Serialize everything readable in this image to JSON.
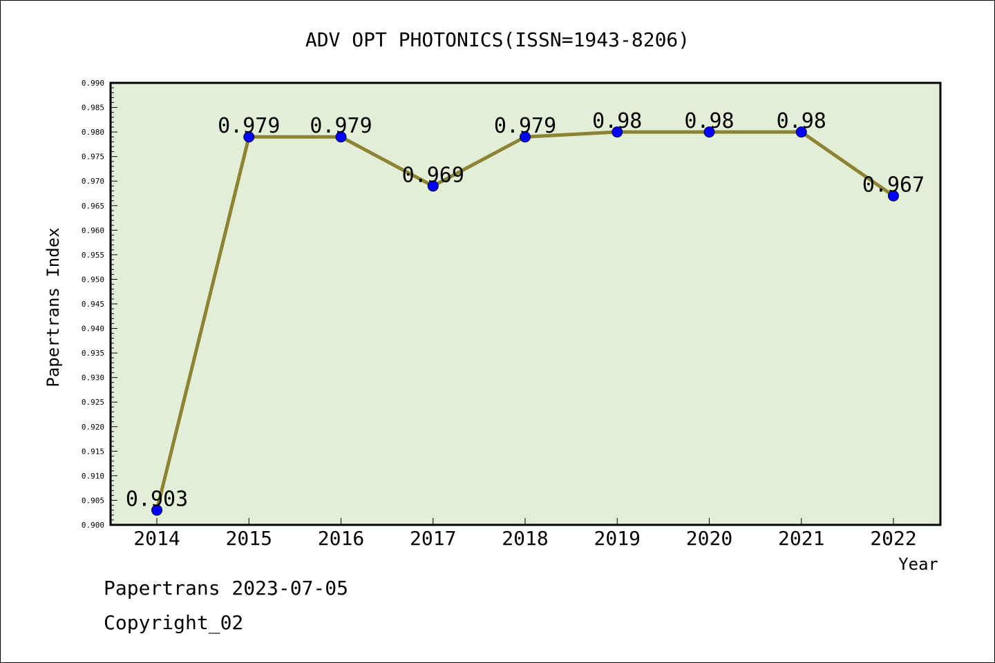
{
  "chart_data": {
    "type": "line",
    "title": "ADV OPT PHOTONICS(ISSN=1943-8206)",
    "xlabel": "Year",
    "ylabel": "Papertrans Index",
    "categories": [
      "2014",
      "2015",
      "2016",
      "2017",
      "2018",
      "2019",
      "2020",
      "2021",
      "2022"
    ],
    "values": [
      0.903,
      0.979,
      0.979,
      0.969,
      0.979,
      0.98,
      0.98,
      0.98,
      0.967
    ],
    "data_labels": [
      "0.903",
      "0.979",
      "0.979",
      "0.969",
      "0.979",
      "0.98",
      "0.98",
      "0.98",
      "0.967"
    ],
    "ylim": [
      0.9,
      0.99
    ],
    "y_tick_labels": [
      "0.900",
      "0.905",
      "0.910",
      "0.915",
      "0.920",
      "0.925",
      "0.930",
      "0.935",
      "0.940",
      "0.945",
      "0.950",
      "0.955",
      "0.960",
      "0.965",
      "0.970",
      "0.975",
      "0.980",
      "0.985",
      "0.990"
    ],
    "grid": false,
    "colors": {
      "plot_background": "#e2efd6",
      "line": "#8c8434",
      "marker": "#0000ff"
    }
  },
  "footer": {
    "date_line": "Papertrans 2023-07-05",
    "copyright_line": "Copyright_02"
  }
}
